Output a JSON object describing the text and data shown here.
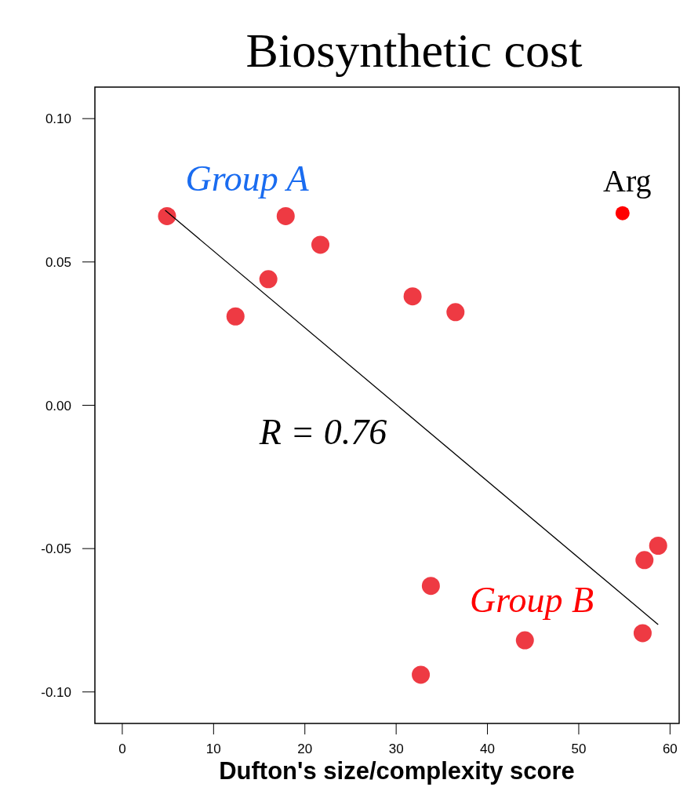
{
  "chart_data": {
    "type": "scatter",
    "title": "Biosynthetic cost",
    "xlabel": "Dufton's size/complexity score",
    "xlim": [
      -3,
      61
    ],
    "xticks": [
      0,
      10,
      20,
      30,
      40,
      50,
      60
    ],
    "ylim": [
      -0.111,
      0.111
    ],
    "yticks": [
      {
        "value": 0.1,
        "label": "0.10"
      },
      {
        "value": 0.05,
        "label": "0.05"
      },
      {
        "value": 0,
        "label": "0.00"
      },
      {
        "value": -0.05,
        "label": "-0.05"
      },
      {
        "value": -0.1,
        "label": "-0.10"
      }
    ],
    "grid": false,
    "annotations": [
      "Group A",
      "Group B",
      "R = 0.76"
    ],
    "series": [
      {
        "color": "#ee3a43",
        "marker": "circle",
        "x": [
          4.9,
          12.4,
          16.0,
          17.9,
          21.7,
          31.8,
          36.5,
          58.7,
          57.2,
          33.8,
          44.1,
          32.7,
          57.0
        ],
        "values": [
          0.066,
          0.031,
          0.044,
          0.066,
          0.056,
          0.038,
          0.0325,
          -0.049,
          -0.054,
          -0.063,
          -0.082,
          -0.094,
          -0.0795
        ]
      },
      {
        "name": "Arg",
        "color": "#ff0000",
        "marker": "circle",
        "x": [
          54.8
        ],
        "values": [
          0.067
        ]
      },
      {
        "type": "line",
        "color": "#000000",
        "marker": "none",
        "x": [
          4.7,
          58.7
        ],
        "values": [
          0.068,
          -0.0765
        ]
      }
    ]
  }
}
